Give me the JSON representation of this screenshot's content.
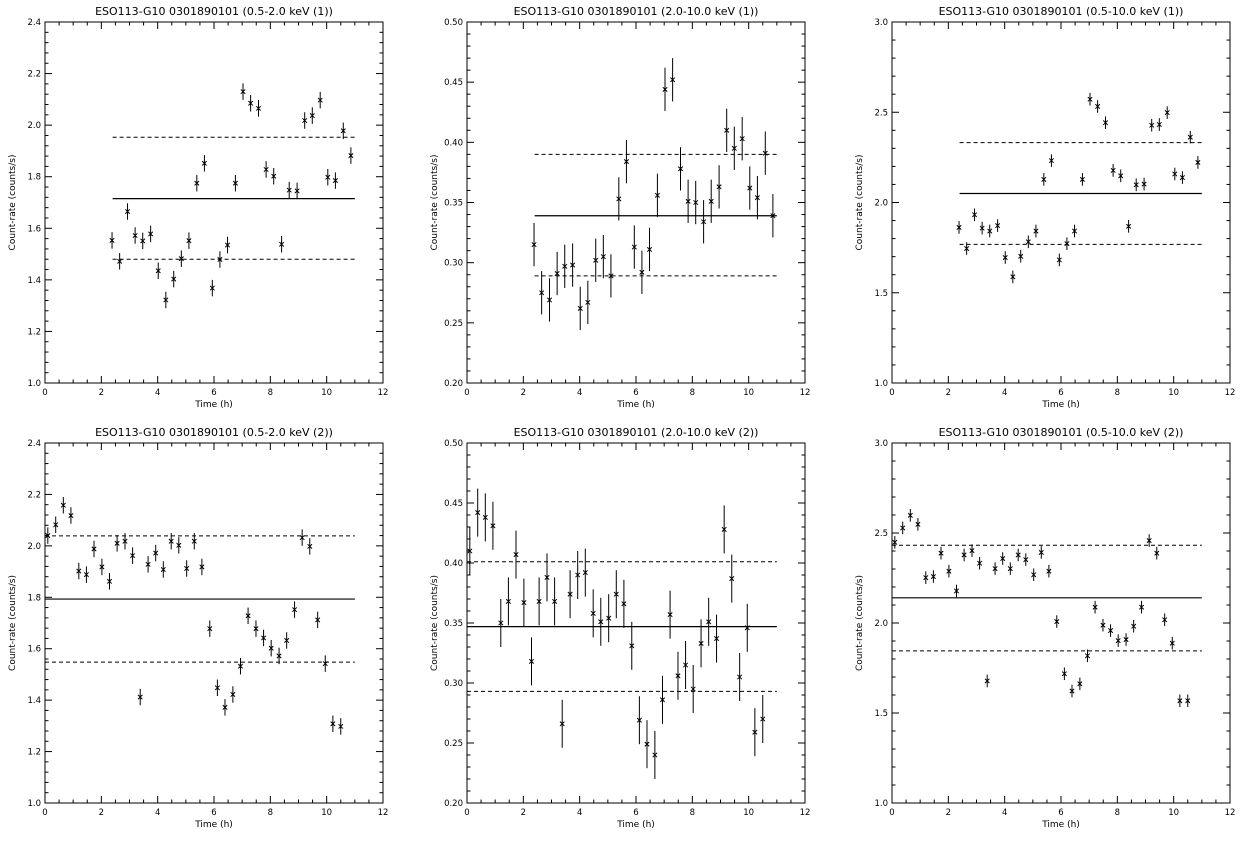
{
  "chart_data": [
    {
      "type": "scatter",
      "title": "ESO113-G10 0301890101 (0.5-2.0 keV (1))",
      "xlabel": "Time (h)",
      "ylabel": "Count-rate (counts/s)",
      "xlim": [
        0,
        12
      ],
      "ylim": [
        1.0,
        2.4
      ],
      "xticks": [
        0,
        2,
        4,
        6,
        8,
        10,
        12
      ],
      "yticks": [
        1.0,
        1.2,
        1.4,
        1.6,
        1.8,
        2.0,
        2.2,
        2.4
      ],
      "ytick_decimals": 1,
      "mean": 1.715,
      "lower": 1.48,
      "upper": 1.953,
      "line_range": [
        2.4,
        11.0
      ],
      "points": [
        [
          2.38,
          1.553
        ],
        [
          2.65,
          1.472
        ],
        [
          2.93,
          1.665
        ],
        [
          3.2,
          1.572
        ],
        [
          3.47,
          1.551
        ],
        [
          3.75,
          1.578
        ],
        [
          4.02,
          1.435
        ],
        [
          4.29,
          1.322
        ],
        [
          4.57,
          1.403
        ],
        [
          4.84,
          1.482
        ],
        [
          5.11,
          1.552
        ],
        [
          5.39,
          1.775
        ],
        [
          5.66,
          1.852
        ],
        [
          5.94,
          1.368
        ],
        [
          6.21,
          1.479
        ],
        [
          6.48,
          1.535
        ],
        [
          6.76,
          1.775
        ],
        [
          7.03,
          2.13
        ],
        [
          7.3,
          2.085
        ],
        [
          7.58,
          2.065
        ],
        [
          7.85,
          1.828
        ],
        [
          8.12,
          1.802
        ],
        [
          8.4,
          1.538
        ],
        [
          8.67,
          1.748
        ],
        [
          8.95,
          1.745
        ],
        [
          9.22,
          2.018
        ],
        [
          9.49,
          2.037
        ],
        [
          9.77,
          2.097
        ],
        [
          10.04,
          1.798
        ],
        [
          10.31,
          1.785
        ],
        [
          10.59,
          1.978
        ],
        [
          10.86,
          1.882
        ]
      ],
      "errors": [
        0.032,
        0.032,
        0.032,
        0.032,
        0.032,
        0.032,
        0.032,
        0.032,
        0.032,
        0.032,
        0.032,
        0.032,
        0.032,
        0.032,
        0.032,
        0.032,
        0.032,
        0.032,
        0.032,
        0.032,
        0.032,
        0.032,
        0.032,
        0.032,
        0.032,
        0.032,
        0.032,
        0.032,
        0.032,
        0.032,
        0.032,
        0.032
      ]
    },
    {
      "type": "scatter",
      "title": "ESO113-G10 0301890101 (2.0-10.0 keV (1))",
      "xlabel": "Time (h)",
      "ylabel": "Count-rate (counts/s)",
      "xlim": [
        0,
        12
      ],
      "ylim": [
        0.2,
        0.5
      ],
      "xticks": [
        0,
        2,
        4,
        6,
        8,
        10,
        12
      ],
      "yticks": [
        0.2,
        0.25,
        0.3,
        0.35,
        0.4,
        0.45,
        0.5
      ],
      "ytick_decimals": 2,
      "mean": 0.339,
      "lower": 0.289,
      "upper": 0.39,
      "line_range": [
        2.4,
        11.0
      ],
      "points": [
        [
          2.38,
          0.315
        ],
        [
          2.65,
          0.275
        ],
        [
          2.93,
          0.269
        ],
        [
          3.2,
          0.291
        ],
        [
          3.47,
          0.297
        ],
        [
          3.75,
          0.298
        ],
        [
          4.02,
          0.262
        ],
        [
          4.29,
          0.267
        ],
        [
          4.57,
          0.302
        ],
        [
          4.84,
          0.305
        ],
        [
          5.11,
          0.289
        ],
        [
          5.39,
          0.353
        ],
        [
          5.66,
          0.384
        ],
        [
          5.94,
          0.313
        ],
        [
          6.21,
          0.292
        ],
        [
          6.48,
          0.311
        ],
        [
          6.76,
          0.356
        ],
        [
          7.03,
          0.444
        ],
        [
          7.3,
          0.452
        ],
        [
          7.58,
          0.378
        ],
        [
          7.85,
          0.351
        ],
        [
          8.12,
          0.35
        ],
        [
          8.4,
          0.334
        ],
        [
          8.67,
          0.351
        ],
        [
          8.95,
          0.363
        ],
        [
          9.22,
          0.41
        ],
        [
          9.49,
          0.395
        ],
        [
          9.77,
          0.403
        ],
        [
          10.04,
          0.362
        ],
        [
          10.31,
          0.354
        ],
        [
          10.59,
          0.391
        ],
        [
          10.86,
          0.339
        ]
      ],
      "errors": [
        0.018,
        0.018,
        0.018,
        0.018,
        0.018,
        0.018,
        0.018,
        0.018,
        0.018,
        0.018,
        0.018,
        0.018,
        0.018,
        0.018,
        0.018,
        0.018,
        0.018,
        0.018,
        0.018,
        0.018,
        0.018,
        0.018,
        0.018,
        0.018,
        0.018,
        0.018,
        0.018,
        0.018,
        0.018,
        0.018,
        0.018,
        0.018
      ]
    },
    {
      "type": "scatter",
      "title": "ESO113-G10 0301890101 (0.5-10.0 keV (1))",
      "xlabel": "Time (h)",
      "ylabel": "Count-rate (counts/s)",
      "xlim": [
        0,
        12
      ],
      "ylim": [
        1.0,
        3.0
      ],
      "xticks": [
        0,
        2,
        4,
        6,
        8,
        10,
        12
      ],
      "yticks": [
        1.0,
        1.5,
        2.0,
        2.5,
        3.0
      ],
      "ytick_decimals": 1,
      "mean": 2.05,
      "lower": 1.768,
      "upper": 2.332,
      "line_range": [
        2.4,
        11.0
      ],
      "points": [
        [
          2.38,
          1.862
        ],
        [
          2.65,
          1.745
        ],
        [
          2.93,
          1.932
        ],
        [
          3.2,
          1.858
        ],
        [
          3.47,
          1.842
        ],
        [
          3.75,
          1.872
        ],
        [
          4.02,
          1.695
        ],
        [
          4.29,
          1.588
        ],
        [
          4.57,
          1.702
        ],
        [
          4.84,
          1.782
        ],
        [
          5.11,
          1.842
        ],
        [
          5.39,
          2.128
        ],
        [
          5.66,
          2.232
        ],
        [
          5.94,
          1.682
        ],
        [
          6.21,
          1.772
        ],
        [
          6.48,
          1.842
        ],
        [
          6.76,
          2.128
        ],
        [
          7.03,
          2.572
        ],
        [
          7.3,
          2.532
        ],
        [
          7.58,
          2.442
        ],
        [
          7.85,
          2.178
        ],
        [
          8.12,
          2.148
        ],
        [
          8.4,
          1.868
        ],
        [
          8.67,
          2.098
        ],
        [
          8.95,
          2.102
        ],
        [
          9.22,
          2.428
        ],
        [
          9.49,
          2.432
        ],
        [
          9.77,
          2.498
        ],
        [
          10.04,
          2.158
        ],
        [
          10.31,
          2.138
        ],
        [
          10.59,
          2.362
        ],
        [
          10.86,
          2.222
        ]
      ],
      "errors": [
        0.035,
        0.035,
        0.035,
        0.035,
        0.035,
        0.035,
        0.035,
        0.035,
        0.035,
        0.035,
        0.035,
        0.035,
        0.035,
        0.035,
        0.035,
        0.035,
        0.035,
        0.035,
        0.035,
        0.035,
        0.035,
        0.035,
        0.035,
        0.035,
        0.035,
        0.035,
        0.035,
        0.035,
        0.035,
        0.035,
        0.035,
        0.035
      ]
    },
    {
      "type": "scatter",
      "title": "ESO113-G10 0301890101 (0.5-2.0 keV (2))",
      "xlabel": "Time (h)",
      "ylabel": "Count-rate (counts/s)",
      "xlim": [
        0,
        12
      ],
      "ylim": [
        1.0,
        2.4
      ],
      "xticks": [
        0,
        2,
        4,
        6,
        8,
        10,
        12
      ],
      "yticks": [
        1.0,
        1.2,
        1.4,
        1.6,
        1.8,
        2.0,
        2.2,
        2.4
      ],
      "ytick_decimals": 1,
      "mean": 1.793,
      "lower": 1.548,
      "upper": 2.039,
      "line_range": [
        0.0,
        11.0
      ],
      "points": [
        [
          0.1,
          2.04
        ],
        [
          0.38,
          2.082
        ],
        [
          0.65,
          2.158
        ],
        [
          0.92,
          2.118
        ],
        [
          1.2,
          1.902
        ],
        [
          1.47,
          1.888
        ],
        [
          1.74,
          1.988
        ],
        [
          2.02,
          1.918
        ],
        [
          2.29,
          1.862
        ],
        [
          2.56,
          2.01
        ],
        [
          2.84,
          2.018
        ],
        [
          3.11,
          1.962
        ],
        [
          3.38,
          1.412
        ],
        [
          3.66,
          1.928
        ],
        [
          3.93,
          1.972
        ],
        [
          4.2,
          1.908
        ],
        [
          4.48,
          2.018
        ],
        [
          4.75,
          2.002
        ],
        [
          5.03,
          1.912
        ],
        [
          5.3,
          2.018
        ],
        [
          5.57,
          1.918
        ],
        [
          5.85,
          1.678
        ],
        [
          6.12,
          1.448
        ],
        [
          6.39,
          1.372
        ],
        [
          6.67,
          1.422
        ],
        [
          6.94,
          1.532
        ],
        [
          7.21,
          1.728
        ],
        [
          7.49,
          1.678
        ],
        [
          7.76,
          1.642
        ],
        [
          8.03,
          1.602
        ],
        [
          8.31,
          1.572
        ],
        [
          8.58,
          1.632
        ],
        [
          8.86,
          1.752
        ],
        [
          9.13,
          2.032
        ],
        [
          9.4,
          1.998
        ],
        [
          9.68,
          1.712
        ],
        [
          9.95,
          1.542
        ],
        [
          10.22,
          1.308
        ],
        [
          10.5,
          1.298
        ]
      ],
      "errors": [
        0.032,
        0.032,
        0.032,
        0.032,
        0.032,
        0.032,
        0.032,
        0.032,
        0.032,
        0.032,
        0.032,
        0.032,
        0.032,
        0.032,
        0.032,
        0.032,
        0.032,
        0.032,
        0.032,
        0.032,
        0.032,
        0.032,
        0.032,
        0.032,
        0.032,
        0.032,
        0.032,
        0.032,
        0.032,
        0.032,
        0.032,
        0.032,
        0.032,
        0.032,
        0.032,
        0.032,
        0.032,
        0.032,
        0.032
      ]
    },
    {
      "type": "scatter",
      "title": "ESO113-G10 0301890101 (2.0-10.0 keV (2))",
      "xlabel": "Time (h)",
      "ylabel": "Count-rate (counts/s)",
      "xlim": [
        0,
        12
      ],
      "ylim": [
        0.2,
        0.5
      ],
      "xticks": [
        0,
        2,
        4,
        6,
        8,
        10,
        12
      ],
      "yticks": [
        0.2,
        0.25,
        0.3,
        0.35,
        0.4,
        0.45,
        0.5
      ],
      "ytick_decimals": 2,
      "mean": 0.347,
      "lower": 0.293,
      "upper": 0.401,
      "line_range": [
        0.0,
        11.0
      ],
      "points": [
        [
          0.1,
          0.41
        ],
        [
          0.38,
          0.442
        ],
        [
          0.65,
          0.438
        ],
        [
          0.92,
          0.431
        ],
        [
          1.2,
          0.35
        ],
        [
          1.47,
          0.368
        ],
        [
          1.74,
          0.407
        ],
        [
          2.02,
          0.367
        ],
        [
          2.29,
          0.318
        ],
        [
          2.56,
          0.368
        ],
        [
          2.84,
          0.388
        ],
        [
          3.11,
          0.368
        ],
        [
          3.38,
          0.266
        ],
        [
          3.66,
          0.374
        ],
        [
          3.93,
          0.39
        ],
        [
          4.2,
          0.392
        ],
        [
          4.48,
          0.358
        ],
        [
          4.75,
          0.351
        ],
        [
          5.03,
          0.354
        ],
        [
          5.3,
          0.374
        ],
        [
          5.57,
          0.366
        ],
        [
          5.85,
          0.331
        ],
        [
          6.12,
          0.269
        ],
        [
          6.39,
          0.249
        ],
        [
          6.67,
          0.24
        ],
        [
          6.94,
          0.286
        ],
        [
          7.21,
          0.357
        ],
        [
          7.49,
          0.306
        ],
        [
          7.76,
          0.315
        ],
        [
          8.03,
          0.295
        ],
        [
          8.31,
          0.333
        ],
        [
          8.58,
          0.351
        ],
        [
          8.86,
          0.337
        ],
        [
          9.13,
          0.428
        ],
        [
          9.4,
          0.387
        ],
        [
          9.68,
          0.305
        ],
        [
          9.95,
          0.346
        ],
        [
          10.22,
          0.259
        ],
        [
          10.5,
          0.27
        ]
      ],
      "errors": [
        0.02,
        0.02,
        0.02,
        0.02,
        0.02,
        0.02,
        0.02,
        0.02,
        0.02,
        0.02,
        0.02,
        0.02,
        0.02,
        0.02,
        0.02,
        0.02,
        0.02,
        0.02,
        0.02,
        0.02,
        0.02,
        0.02,
        0.02,
        0.02,
        0.02,
        0.02,
        0.02,
        0.02,
        0.02,
        0.02,
        0.02,
        0.02,
        0.02,
        0.02,
        0.02,
        0.02,
        0.02,
        0.02,
        0.02
      ]
    },
    {
      "type": "scatter",
      "title": "ESO113-G10 0301890101 (0.5-10.0 keV (2))",
      "xlabel": "Time (h)",
      "ylabel": "Count-rate (counts/s)",
      "xlim": [
        0,
        12
      ],
      "ylim": [
        1.0,
        3.0
      ],
      "xticks": [
        0,
        2,
        4,
        6,
        8,
        10,
        12
      ],
      "yticks": [
        1.0,
        1.5,
        2.0,
        2.5,
        3.0
      ],
      "ytick_decimals": 1,
      "mean": 2.14,
      "lower": 1.845,
      "upper": 2.432,
      "line_range": [
        0.0,
        11.0
      ],
      "points": [
        [
          0.1,
          2.448
        ],
        [
          0.38,
          2.528
        ],
        [
          0.65,
          2.598
        ],
        [
          0.92,
          2.548
        ],
        [
          1.2,
          2.252
        ],
        [
          1.47,
          2.258
        ],
        [
          1.74,
          2.388
        ],
        [
          2.02,
          2.288
        ],
        [
          2.29,
          2.178
        ],
        [
          2.56,
          2.378
        ],
        [
          2.84,
          2.402
        ],
        [
          3.11,
          2.332
        ],
        [
          3.38,
          1.678
        ],
        [
          3.66,
          2.302
        ],
        [
          3.93,
          2.358
        ],
        [
          4.2,
          2.302
        ],
        [
          4.48,
          2.378
        ],
        [
          4.75,
          2.352
        ],
        [
          5.03,
          2.268
        ],
        [
          5.3,
          2.392
        ],
        [
          5.57,
          2.288
        ],
        [
          5.85,
          2.008
        ],
        [
          6.12,
          1.718
        ],
        [
          6.39,
          1.622
        ],
        [
          6.67,
          1.662
        ],
        [
          6.94,
          1.818
        ],
        [
          7.21,
          2.088
        ],
        [
          7.49,
          1.988
        ],
        [
          7.76,
          1.958
        ],
        [
          8.03,
          1.902
        ],
        [
          8.31,
          1.908
        ],
        [
          8.58,
          1.982
        ],
        [
          8.86,
          2.088
        ],
        [
          9.13,
          2.458
        ],
        [
          9.4,
          2.388
        ],
        [
          9.68,
          2.018
        ],
        [
          9.95,
          1.888
        ],
        [
          10.22,
          1.568
        ],
        [
          10.5,
          1.568
        ]
      ],
      "errors": [
        0.035,
        0.035,
        0.035,
        0.035,
        0.035,
        0.035,
        0.035,
        0.035,
        0.035,
        0.035,
        0.035,
        0.035,
        0.035,
        0.035,
        0.035,
        0.035,
        0.035,
        0.035,
        0.035,
        0.035,
        0.035,
        0.035,
        0.035,
        0.035,
        0.035,
        0.035,
        0.035,
        0.035,
        0.035,
        0.035,
        0.035,
        0.035,
        0.035,
        0.035,
        0.035,
        0.035,
        0.035,
        0.035,
        0.035
      ]
    }
  ]
}
